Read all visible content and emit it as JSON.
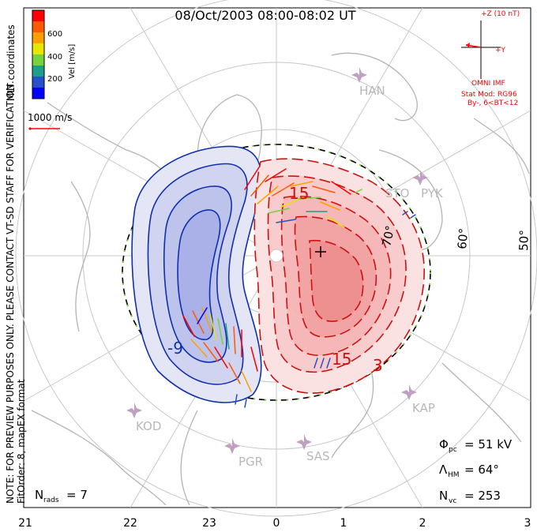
{
  "title": "08/Oct/2003 08:00-08:02 UT",
  "left_note": {
    "line1": "NOTE: FOR PREVIEW PURPOSES ONLY. PLEASE CONTACT VT-SD STAFF FOR VERIFICATION.",
    "line2": "FitOrder: 8, mapEX format"
  },
  "coordinates_label": "MLT coordinates",
  "colorbar": {
    "title": "Vel [m/s]",
    "ticks": [
      "600",
      "400",
      "200"
    ],
    "colors": [
      "#ff0000",
      "#ff5a00",
      "#ffa000",
      "#e6e600",
      "#78d23c",
      "#1e9e8c",
      "#2850c8",
      "#0000ff"
    ]
  },
  "scale_vector": {
    "label": "1000 m/s",
    "color": "#ff0000"
  },
  "imf": {
    "bz_label": "+Z (10 nT)",
    "by_label": "+Y",
    "source": "OMNI IMF",
    "model_line1": "Stat Mod: RG96",
    "model_line2": "By-, 6<BT<12",
    "color": "#ff0000"
  },
  "stations": [
    "HAN",
    "STO",
    "PYK",
    "KOD",
    "PGR",
    "SAS",
    "KAP"
  ],
  "lat_labels": [
    "70°",
    "60°",
    "50°"
  ],
  "contour_labels": {
    "neg": "-9",
    "pos1": "15",
    "pos2": "15",
    "pos3": "3"
  },
  "stats": {
    "phi_label": "Φ",
    "phi_sub": "pc",
    "phi_value": "= 51 kV",
    "lambda_label": "Λ",
    "lambda_sub": "HM",
    "lambda_value": "= 64°",
    "nvc_label": "N",
    "nvc_sub": "vc",
    "nvc_value": "= 253",
    "nrads_label": "N",
    "nrads_sub": "rads",
    "nrads_value": "= 7"
  },
  "mlt_ticks": [
    "21",
    "22",
    "23",
    "0",
    "1",
    "2",
    "3"
  ],
  "colors": {
    "negative_contour": "#1030b0",
    "negative_fill": "#aab0e8",
    "positive_contour": "#d01010",
    "positive_fill": "#f4a0a0",
    "grid": "#c8c8c8",
    "coast": "#b4b4b4",
    "station": "#c0a0c0"
  }
}
